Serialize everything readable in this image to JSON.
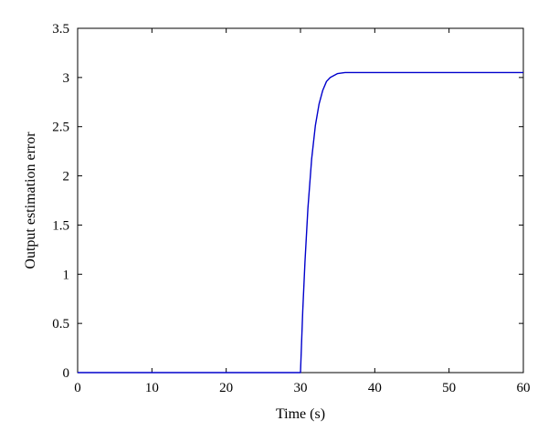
{
  "chart_data": {
    "type": "line",
    "title": "",
    "xlabel": "Time (s)",
    "ylabel": "Output estimation error",
    "xlim": [
      0,
      60
    ],
    "ylim": [
      0,
      3.5
    ],
    "xticks": [
      0,
      10,
      20,
      30,
      40,
      50,
      60
    ],
    "xtick_labels": [
      "0",
      "10",
      "20",
      "30",
      "40",
      "50",
      "60"
    ],
    "yticks": [
      0,
      0.5,
      1,
      1.5,
      2,
      2.5,
      3,
      3.5
    ],
    "ytick_labels": [
      "0",
      "0.5",
      "1",
      "1.5",
      "2",
      "2.5",
      "3",
      "3.5"
    ],
    "grid": false,
    "legend": "none",
    "line_color": "#0000cc",
    "series": [
      {
        "x": [
          0,
          10,
          20,
          29.9,
          30,
          30.3,
          30.6,
          31,
          31.5,
          32,
          32.5,
          33,
          33.5,
          34,
          35,
          36,
          38,
          40,
          50,
          60
        ],
        "values": [
          0,
          0,
          0,
          0,
          0,
          0.62,
          1.12,
          1.67,
          2.17,
          2.51,
          2.73,
          2.87,
          2.96,
          3.0,
          3.04,
          3.05,
          3.05,
          3.05,
          3.05,
          3.05
        ]
      }
    ]
  }
}
